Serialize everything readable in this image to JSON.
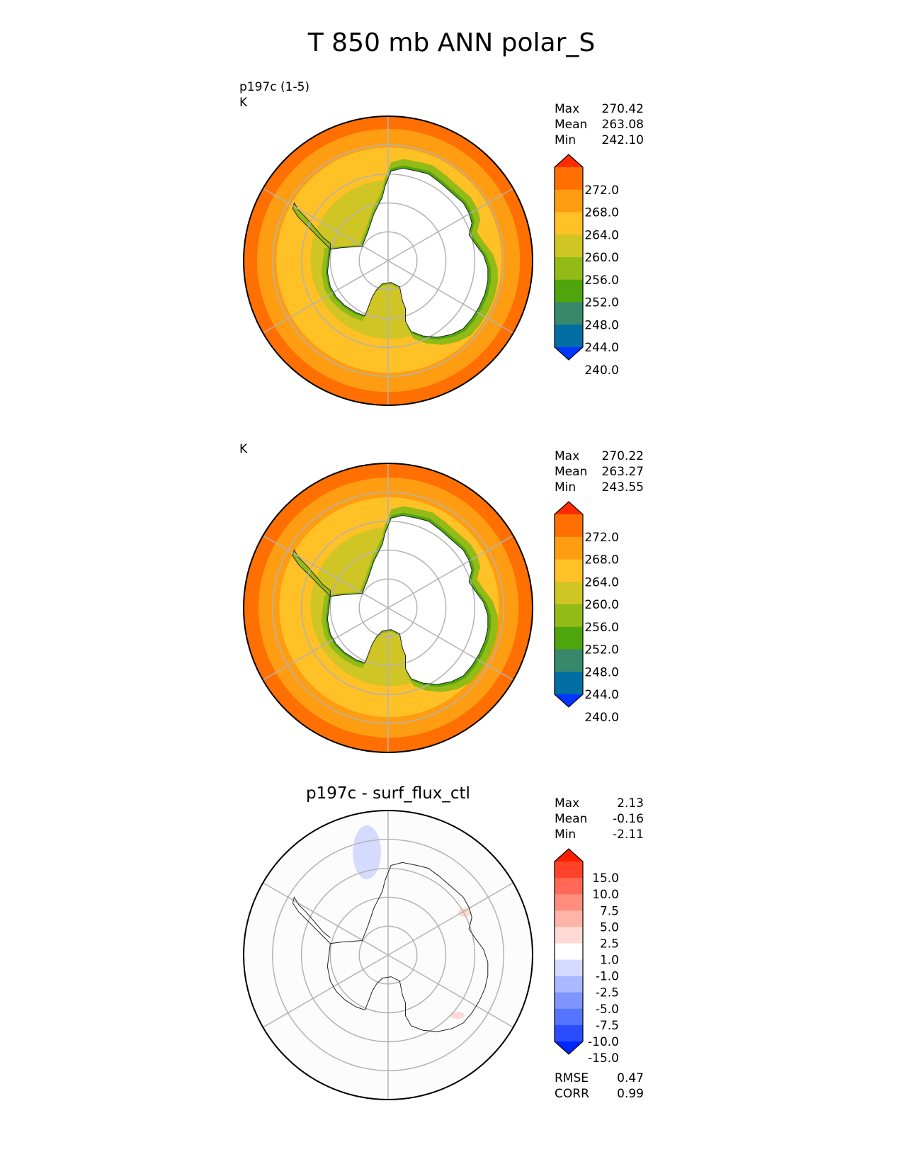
{
  "suptitle": "T 850 mb ANN polar_S",
  "colors": {
    "test_levels": [
      "#0036fe",
      "#006ea3",
      "#38886b",
      "#4ea60c",
      "#93bb17",
      "#cfc525",
      "#ffc125",
      "#ff9d12",
      "#ff6f01",
      "#ff2c00"
    ],
    "diff_levels": [
      "#0026ff",
      "#2b4dff",
      "#5574ff",
      "#7f95ff",
      "#aab8ff",
      "#d4dbff",
      "#ffffff",
      "#ffd9d4",
      "#ffb4aa",
      "#ff8e7f",
      "#ff6955",
      "#ff432b",
      "#ff1e00"
    ],
    "grid": "#b3b3b3",
    "coast": "#222222",
    "land_mask": "#ffffff"
  },
  "chart_data": [
    {
      "type": "heatmap",
      "projection": "south-polar-stereographic",
      "name_label": "p197c (1-5)",
      "units": "K",
      "stats": [
        {
          "label": "Max",
          "value": "270.42"
        },
        {
          "label": "Mean",
          "value": "263.08"
        },
        {
          "label": "Min",
          "value": "242.10"
        }
      ],
      "colorbar_ticks": [
        "272.0",
        "268.0",
        "264.0",
        "260.0",
        "256.0",
        "252.0",
        "248.0",
        "244.0",
        "240.0"
      ],
      "colorbar_extend": "both",
      "field_rings": [
        {
          "r": 1.0,
          "value": 270.5
        },
        {
          "r": 0.91,
          "value": 266.5
        },
        {
          "r": 0.78,
          "value": 262.5
        },
        {
          "r": 0.55,
          "value": 258.5
        }
      ]
    },
    {
      "type": "heatmap",
      "projection": "south-polar-stereographic",
      "name_label": "",
      "units": "K",
      "stats": [
        {
          "label": "Max",
          "value": "270.22"
        },
        {
          "label": "Mean",
          "value": "263.27"
        },
        {
          "label": "Min",
          "value": "243.55"
        }
      ],
      "colorbar_ticks": [
        "272.0",
        "268.0",
        "264.0",
        "260.0",
        "256.0",
        "252.0",
        "248.0",
        "244.0",
        "240.0"
      ],
      "colorbar_extend": "both",
      "field_rings": [
        {
          "r": 1.0,
          "value": 270.5
        },
        {
          "r": 0.9,
          "value": 266.5
        },
        {
          "r": 0.76,
          "value": 262.5
        },
        {
          "r": 0.55,
          "value": 258.5
        }
      ]
    },
    {
      "type": "heatmap",
      "projection": "south-polar-stereographic",
      "title": "p197c - surf_flux_ctl",
      "stats": [
        {
          "label": "Max",
          "value": "2.13"
        },
        {
          "label": "Mean",
          "value": "-0.16"
        },
        {
          "label": "Min",
          "value": "-2.11"
        }
      ],
      "colorbar_ticks": [
        "15.0",
        "10.0",
        "7.5",
        "5.0",
        "2.5",
        "1.0",
        "-1.0",
        "-2.5",
        "-5.0",
        "-7.5",
        "-10.0",
        "-15.0"
      ],
      "colorbar_extend": "both",
      "metrics": [
        {
          "label": "RMSE",
          "value": "0.47"
        },
        {
          "label": "CORR",
          "value": "0.99"
        }
      ]
    }
  ]
}
